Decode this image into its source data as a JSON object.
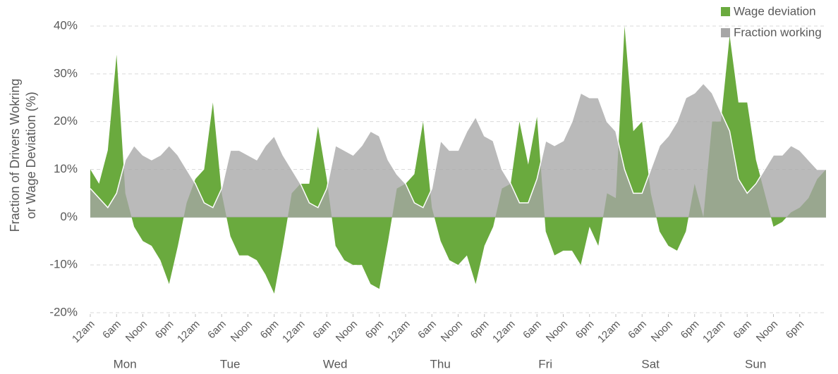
{
  "chart_data": {
    "type": "area",
    "y_label": [
      "Fraction of Drivers Wokring",
      "or Wage Deviation (%)"
    ],
    "x": [
      0,
      2,
      4,
      6,
      8,
      10,
      12,
      14,
      16,
      18,
      20,
      22,
      24,
      26,
      28,
      30,
      32,
      34,
      36,
      38,
      40,
      42,
      44,
      46,
      48,
      50,
      52,
      54,
      56,
      58,
      60,
      62,
      64,
      66,
      68,
      70,
      72,
      74,
      76,
      78,
      80,
      82,
      84,
      86,
      88,
      90,
      92,
      94,
      96,
      98,
      100,
      102,
      104,
      106,
      108,
      110,
      112,
      114,
      116,
      118,
      120,
      122,
      124,
      126,
      128,
      130,
      132,
      134,
      136,
      138,
      140,
      142,
      144,
      146,
      148,
      150,
      152,
      154,
      156,
      158,
      160,
      162,
      164,
      166,
      168
    ],
    "xlim": [
      0,
      168
    ],
    "xticks": [
      {
        "value": 0,
        "label": "12am"
      },
      {
        "value": 6,
        "label": "6am"
      },
      {
        "value": 12,
        "label": "Noon"
      },
      {
        "value": 18,
        "label": "6pm"
      },
      {
        "value": 24,
        "label": "12am"
      },
      {
        "value": 30,
        "label": "6am"
      },
      {
        "value": 36,
        "label": "Noon"
      },
      {
        "value": 42,
        "label": "6pm"
      },
      {
        "value": 48,
        "label": "12am"
      },
      {
        "value": 54,
        "label": "6am"
      },
      {
        "value": 60,
        "label": "Noon"
      },
      {
        "value": 66,
        "label": "6pm"
      },
      {
        "value": 72,
        "label": "12am"
      },
      {
        "value": 78,
        "label": "6am"
      },
      {
        "value": 84,
        "label": "Noon"
      },
      {
        "value": 90,
        "label": "6pm"
      },
      {
        "value": 96,
        "label": "12am"
      },
      {
        "value": 102,
        "label": "6am"
      },
      {
        "value": 108,
        "label": "Noon"
      },
      {
        "value": 114,
        "label": "6pm"
      },
      {
        "value": 120,
        "label": "12am"
      },
      {
        "value": 126,
        "label": "6am"
      },
      {
        "value": 132,
        "label": "Noon"
      },
      {
        "value": 138,
        "label": "6pm"
      },
      {
        "value": 144,
        "label": "12am"
      },
      {
        "value": 150,
        "label": "6am"
      },
      {
        "value": 156,
        "label": "Noon"
      },
      {
        "value": 162,
        "label": "6pm"
      }
    ],
    "day_labels": [
      "Mon",
      "Tue",
      "Wed",
      "Thu",
      "Fri",
      "Sat",
      "Sun"
    ],
    "ylim": [
      -20,
      40
    ],
    "yticks": [
      {
        "value": -20,
        "label": "-20%"
      },
      {
        "value": -10,
        "label": "-10%"
      },
      {
        "value": 0,
        "label": "0%"
      },
      {
        "value": 10,
        "label": "10%"
      },
      {
        "value": 20,
        "label": "20%"
      },
      {
        "value": 30,
        "label": "30%"
      },
      {
        "value": 40,
        "label": "40%"
      }
    ],
    "grid": true,
    "legend": "top-right",
    "series": [
      {
        "name": "Wage deviation",
        "color": "#6aaa3e",
        "values": [
          10,
          7,
          14,
          34,
          5,
          -2,
          -5,
          -6,
          -9,
          -14,
          -6,
          3,
          8,
          10,
          24,
          5,
          -4,
          -8,
          -8,
          -9,
          -12,
          -16,
          -6,
          5,
          7,
          7,
          19,
          8,
          -6,
          -9,
          -10,
          -10,
          -14,
          -15,
          -5,
          6,
          7,
          9,
          20,
          2,
          -5,
          -9,
          -10,
          -8,
          -14,
          -6,
          -2,
          6,
          7,
          20,
          11,
          21,
          -3,
          -8,
          -7,
          -7,
          -10,
          -2,
          -6,
          5,
          4,
          40,
          18,
          20,
          5,
          -3,
          -6,
          -7,
          -3,
          7,
          0,
          20,
          20,
          38,
          24,
          24,
          12,
          5,
          -2,
          -1,
          1,
          2,
          4,
          8,
          10
        ]
      },
      {
        "name": "Fraction working",
        "color": "#a6a6a6",
        "values": [
          6,
          4,
          2,
          5,
          12,
          15,
          13,
          12,
          13,
          15,
          13,
          10,
          7,
          3,
          2,
          6,
          14,
          14,
          13,
          12,
          15,
          17,
          13,
          10,
          7,
          3,
          2,
          6,
          15,
          14,
          13,
          15,
          18,
          17,
          12,
          9,
          7,
          3,
          2,
          6,
          16,
          14,
          14,
          18,
          21,
          17,
          16,
          10,
          7,
          3,
          3,
          8,
          16,
          15,
          16,
          20,
          26,
          25,
          25,
          20,
          18,
          10,
          5,
          5,
          10,
          15,
          17,
          20,
          25,
          26,
          28,
          26,
          22,
          18,
          8,
          5,
          7,
          10,
          13,
          13,
          15,
          14,
          12,
          10,
          10
        ]
      }
    ]
  }
}
